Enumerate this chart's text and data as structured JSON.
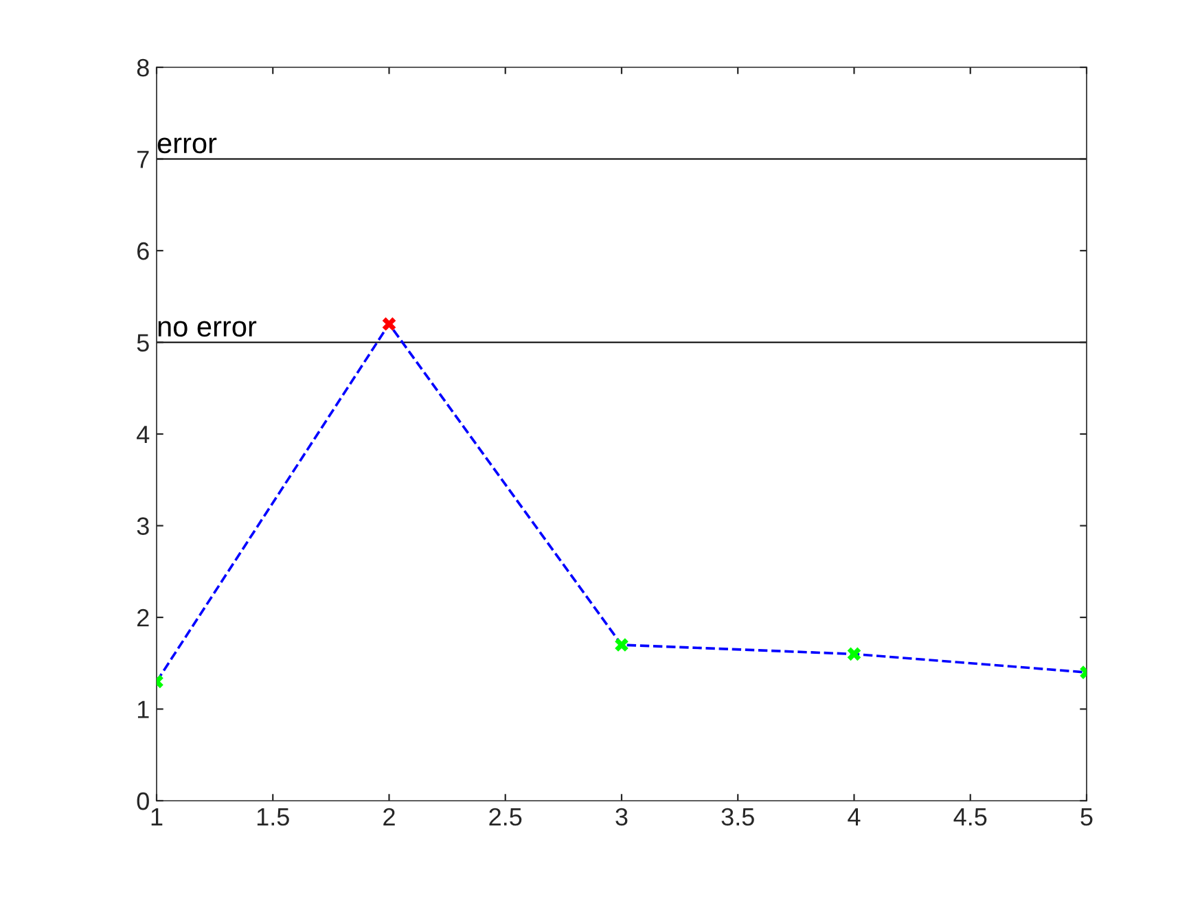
{
  "chart_data": {
    "type": "line",
    "x": [
      1,
      2,
      3,
      4,
      5
    ],
    "series": [
      {
        "color": "#0000ff",
        "colors": [
          "#00ff00",
          "#ff0000",
          "#00ff00",
          "#00ff00",
          "#00ff00"
        ],
        "values": [
          1.3,
          5.2,
          1.7,
          1.6,
          1.4
        ]
      }
    ],
    "marker": "cross",
    "line_style": "dashed",
    "xlim": [
      1,
      5
    ],
    "xticks": [
      1,
      1.5,
      2,
      2.5,
      3,
      3.5,
      4,
      4.5,
      5
    ],
    "ylim": [
      0,
      8
    ],
    "yticks": [
      0,
      1,
      2,
      3,
      4,
      5,
      6,
      7,
      8
    ],
    "ref_lines": [
      {
        "axis": "y",
        "value": 5,
        "label": "no error",
        "color": "#000000"
      },
      {
        "axis": "y",
        "value": 7,
        "label": "error",
        "color": "#000000"
      }
    ],
    "grid": false
  }
}
